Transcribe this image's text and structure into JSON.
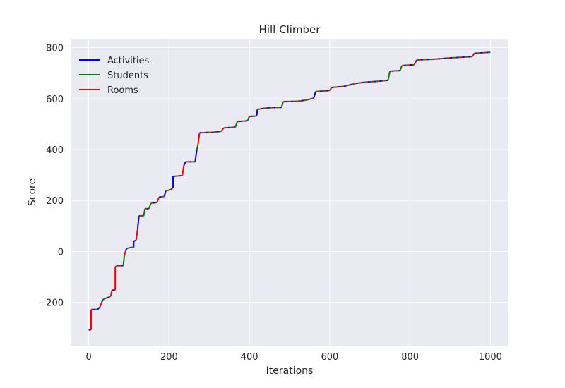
{
  "chart_data": {
    "type": "line",
    "title": "Hill Climber",
    "xlabel": "Iterations",
    "ylabel": "Score",
    "xlim": [
      -45,
      1045
    ],
    "ylim": [
      -370,
      835
    ],
    "xticks": [
      0,
      200,
      400,
      600,
      800,
      1000
    ],
    "yticks": [
      -200,
      0,
      200,
      400,
      600,
      800
    ],
    "grid": true,
    "legend_position": "top-left",
    "series_colors": {
      "Activities": "#0000ff",
      "Students": "#008000",
      "Rooms": "#ff0000"
    },
    "legend": [
      "Activities",
      "Students",
      "Rooms"
    ],
    "score_trace": [
      [
        0,
        -308
      ],
      [
        6,
        -308
      ],
      [
        6,
        -228
      ],
      [
        22,
        -228
      ],
      [
        28,
        -218
      ],
      [
        35,
        -190
      ],
      [
        40,
        -185
      ],
      [
        50,
        -180
      ],
      [
        55,
        -175
      ],
      [
        58,
        -152
      ],
      [
        66,
        -152
      ],
      [
        66,
        -60
      ],
      [
        72,
        -56
      ],
      [
        86,
        -56
      ],
      [
        89,
        -15
      ],
      [
        92,
        3
      ],
      [
        95,
        12
      ],
      [
        106,
        16
      ],
      [
        112,
        16
      ],
      [
        112,
        40
      ],
      [
        118,
        44
      ],
      [
        122,
        90
      ],
      [
        125,
        140
      ],
      [
        137,
        140
      ],
      [
        140,
        168
      ],
      [
        150,
        168
      ],
      [
        155,
        190
      ],
      [
        170,
        192
      ],
      [
        175,
        213
      ],
      [
        188,
        216
      ],
      [
        192,
        238
      ],
      [
        203,
        242
      ],
      [
        210,
        250
      ],
      [
        210,
        295
      ],
      [
        233,
        298
      ],
      [
        237,
        338
      ],
      [
        241,
        352
      ],
      [
        265,
        352
      ],
      [
        269,
        398
      ],
      [
        272,
        420
      ],
      [
        276,
        466
      ],
      [
        310,
        468
      ],
      [
        330,
        472
      ],
      [
        336,
        485
      ],
      [
        365,
        488
      ],
      [
        370,
        510
      ],
      [
        395,
        513
      ],
      [
        400,
        530
      ],
      [
        418,
        532
      ],
      [
        420,
        558
      ],
      [
        445,
        564
      ],
      [
        480,
        566
      ],
      [
        484,
        588
      ],
      [
        520,
        590
      ],
      [
        540,
        594
      ],
      [
        560,
        602
      ],
      [
        565,
        628
      ],
      [
        600,
        632
      ],
      [
        605,
        644
      ],
      [
        635,
        648
      ],
      [
        665,
        660
      ],
      [
        690,
        665
      ],
      [
        720,
        668
      ],
      [
        745,
        672
      ],
      [
        750,
        708
      ],
      [
        775,
        710
      ],
      [
        780,
        730
      ],
      [
        810,
        733
      ],
      [
        817,
        752
      ],
      [
        860,
        755
      ],
      [
        900,
        760
      ],
      [
        955,
        765
      ],
      [
        960,
        778
      ],
      [
        1000,
        782
      ]
    ]
  }
}
